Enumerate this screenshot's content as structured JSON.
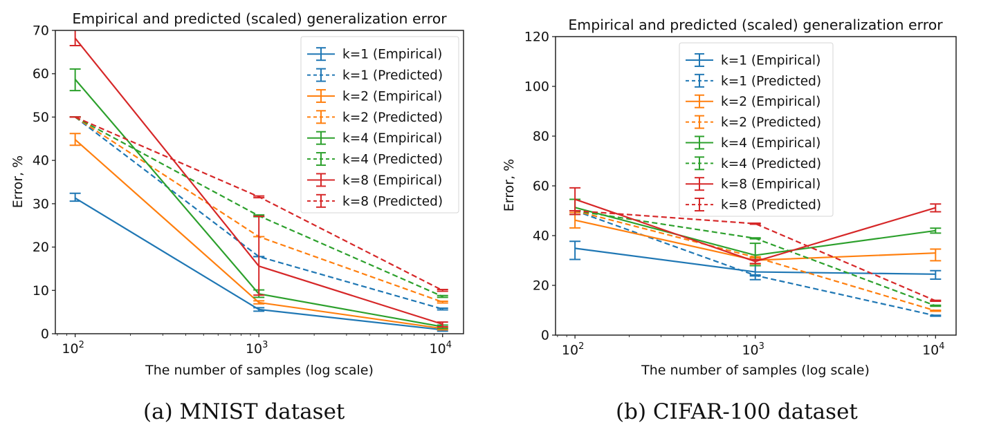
{
  "colors": {
    "k1": "#1f77b4",
    "k2": "#ff7f0e",
    "k4": "#2ca02c",
    "k8": "#d62728",
    "axis": "#222222",
    "text": "#111111"
  },
  "chart_data": [
    {
      "type": "line",
      "title": "Empirical and predicted (scaled) generalization error",
      "xlabel": "The number of samples (log scale)",
      "ylabel": "Error, %",
      "xscale": "log",
      "x": [
        100,
        1000,
        10000
      ],
      "xlim": [
        78,
        13000
      ],
      "ylim": [
        0,
        70
      ],
      "yticks": [
        0,
        10,
        20,
        30,
        40,
        50,
        60,
        70
      ],
      "xtick_labels": [
        {
          "base": "10",
          "exp": "2",
          "value": 100
        },
        {
          "base": "10",
          "exp": "3",
          "value": 1000
        },
        {
          "base": "10",
          "exp": "4",
          "value": 10000
        }
      ],
      "legend_position": "top-right",
      "caption": "(a) MNIST dataset",
      "series": [
        {
          "name": "k=1 (Empirical)",
          "color_key": "k1",
          "dashed": false,
          "values": [
            31.3,
            5.6,
            0.9
          ],
          "err_low": [
            30.6,
            5.2,
            0.6
          ],
          "err_high": [
            32.4,
            6.0,
            1.2
          ]
        },
        {
          "name": "k=1 (Predicted)",
          "color_key": "k1",
          "dashed": true,
          "values": [
            50.0,
            17.8,
            5.7
          ],
          "err_low": [
            50.0,
            17.8,
            5.5
          ],
          "err_high": [
            50.0,
            17.8,
            5.9
          ]
        },
        {
          "name": "k=2 (Empirical)",
          "color_key": "k2",
          "dashed": false,
          "values": [
            44.8,
            7.2,
            1.2
          ],
          "err_low": [
            43.5,
            6.9,
            0.9
          ],
          "err_high": [
            46.2,
            7.6,
            1.5
          ]
        },
        {
          "name": "k=2 (Predicted)",
          "color_key": "k2",
          "dashed": true,
          "values": [
            50.0,
            22.4,
            7.3
          ],
          "err_low": [
            50.0,
            22.4,
            7.1
          ],
          "err_high": [
            50.0,
            22.4,
            7.5
          ]
        },
        {
          "name": "k=4 (Empirical)",
          "color_key": "k4",
          "dashed": false,
          "values": [
            58.7,
            9.2,
            1.6
          ],
          "err_low": [
            56.1,
            8.4,
            1.2
          ],
          "err_high": [
            61.1,
            10.1,
            2.0
          ]
        },
        {
          "name": "k=4 (Predicted)",
          "color_key": "k4",
          "dashed": true,
          "values": [
            50.0,
            27.2,
            8.6
          ],
          "err_low": [
            50.0,
            27.0,
            8.4
          ],
          "err_high": [
            50.0,
            27.4,
            8.8
          ]
        },
        {
          "name": "k=8 (Empirical)",
          "color_key": "k8",
          "dashed": false,
          "values": [
            68.2,
            15.6,
            2.2
          ],
          "err_low": [
            66.5,
            8.9,
            1.6
          ],
          "err_high": [
            71.0,
            27.1,
            2.7
          ]
        },
        {
          "name": "k=8 (Predicted)",
          "color_key": "k8",
          "dashed": true,
          "values": [
            50.0,
            31.6,
            10.0
          ],
          "err_low": [
            50.0,
            31.4,
            9.8
          ],
          "err_high": [
            50.0,
            31.8,
            10.2
          ]
        }
      ]
    },
    {
      "type": "line",
      "title": "Empirical and predicted (scaled) generalization error",
      "xlabel": "The number of samples (log scale)",
      "ylabel": "Error, %",
      "xscale": "log",
      "x": [
        100,
        1000,
        10000
      ],
      "xlim": [
        78,
        13000
      ],
      "ylim": [
        0,
        120
      ],
      "yticks": [
        0,
        20,
        40,
        60,
        80,
        100,
        120
      ],
      "xtick_labels": [
        {
          "base": "10",
          "exp": "2",
          "value": 100
        },
        {
          "base": "10",
          "exp": "3",
          "value": 1000
        },
        {
          "base": "10",
          "exp": "4",
          "value": 10000
        }
      ],
      "legend_position": "top-center",
      "caption": "(b) CIFAR-100 dataset",
      "series": [
        {
          "name": "k=1 (Empirical)",
          "color_key": "k1",
          "dashed": false,
          "values": [
            34.9,
            25.4,
            24.5
          ],
          "err_low": [
            30.4,
            22.3,
            22.5
          ],
          "err_high": [
            37.7,
            27.9,
            25.9
          ]
        },
        {
          "name": "k=1 (Predicted)",
          "color_key": "k1",
          "dashed": true,
          "values": [
            50.0,
            24.0,
            7.8
          ],
          "err_low": [
            50.0,
            23.8,
            7.6
          ],
          "err_high": [
            50.0,
            24.2,
            8.0
          ]
        },
        {
          "name": "k=2 (Empirical)",
          "color_key": "k2",
          "dashed": false,
          "values": [
            46.2,
            30.1,
            33.0
          ],
          "err_low": [
            43.1,
            28.6,
            29.9
          ],
          "err_high": [
            49.3,
            31.4,
            34.6
          ]
        },
        {
          "name": "k=2 (Predicted)",
          "color_key": "k2",
          "dashed": true,
          "values": [
            50.0,
            31.3,
            9.8
          ],
          "err_low": [
            50.0,
            31.1,
            9.6
          ],
          "err_high": [
            50.0,
            31.5,
            10.0
          ]
        },
        {
          "name": "k=4 (Empirical)",
          "color_key": "k4",
          "dashed": false,
          "values": [
            51.3,
            32.1,
            42.0
          ],
          "err_low": [
            48.5,
            27.9,
            41.0
          ],
          "err_high": [
            54.6,
            36.9,
            43.0
          ]
        },
        {
          "name": "k=4 (Predicted)",
          "color_key": "k4",
          "dashed": true,
          "values": [
            50.0,
            38.9,
            11.8
          ],
          "err_low": [
            50.0,
            38.7,
            11.6
          ],
          "err_high": [
            50.0,
            39.1,
            12.0
          ]
        },
        {
          "name": "k=8 (Empirical)",
          "color_key": "k8",
          "dashed": false,
          "values": [
            54.6,
            29.6,
            51.2
          ],
          "err_low": [
            48.5,
            28.8,
            49.6
          ],
          "err_high": [
            59.2,
            30.4,
            52.7
          ]
        },
        {
          "name": "k=8 (Predicted)",
          "color_key": "k8",
          "dashed": true,
          "values": [
            50.0,
            44.8,
            13.8
          ],
          "err_low": [
            50.0,
            44.6,
            13.6
          ],
          "err_high": [
            50.0,
            45.0,
            14.0
          ]
        }
      ]
    }
  ]
}
